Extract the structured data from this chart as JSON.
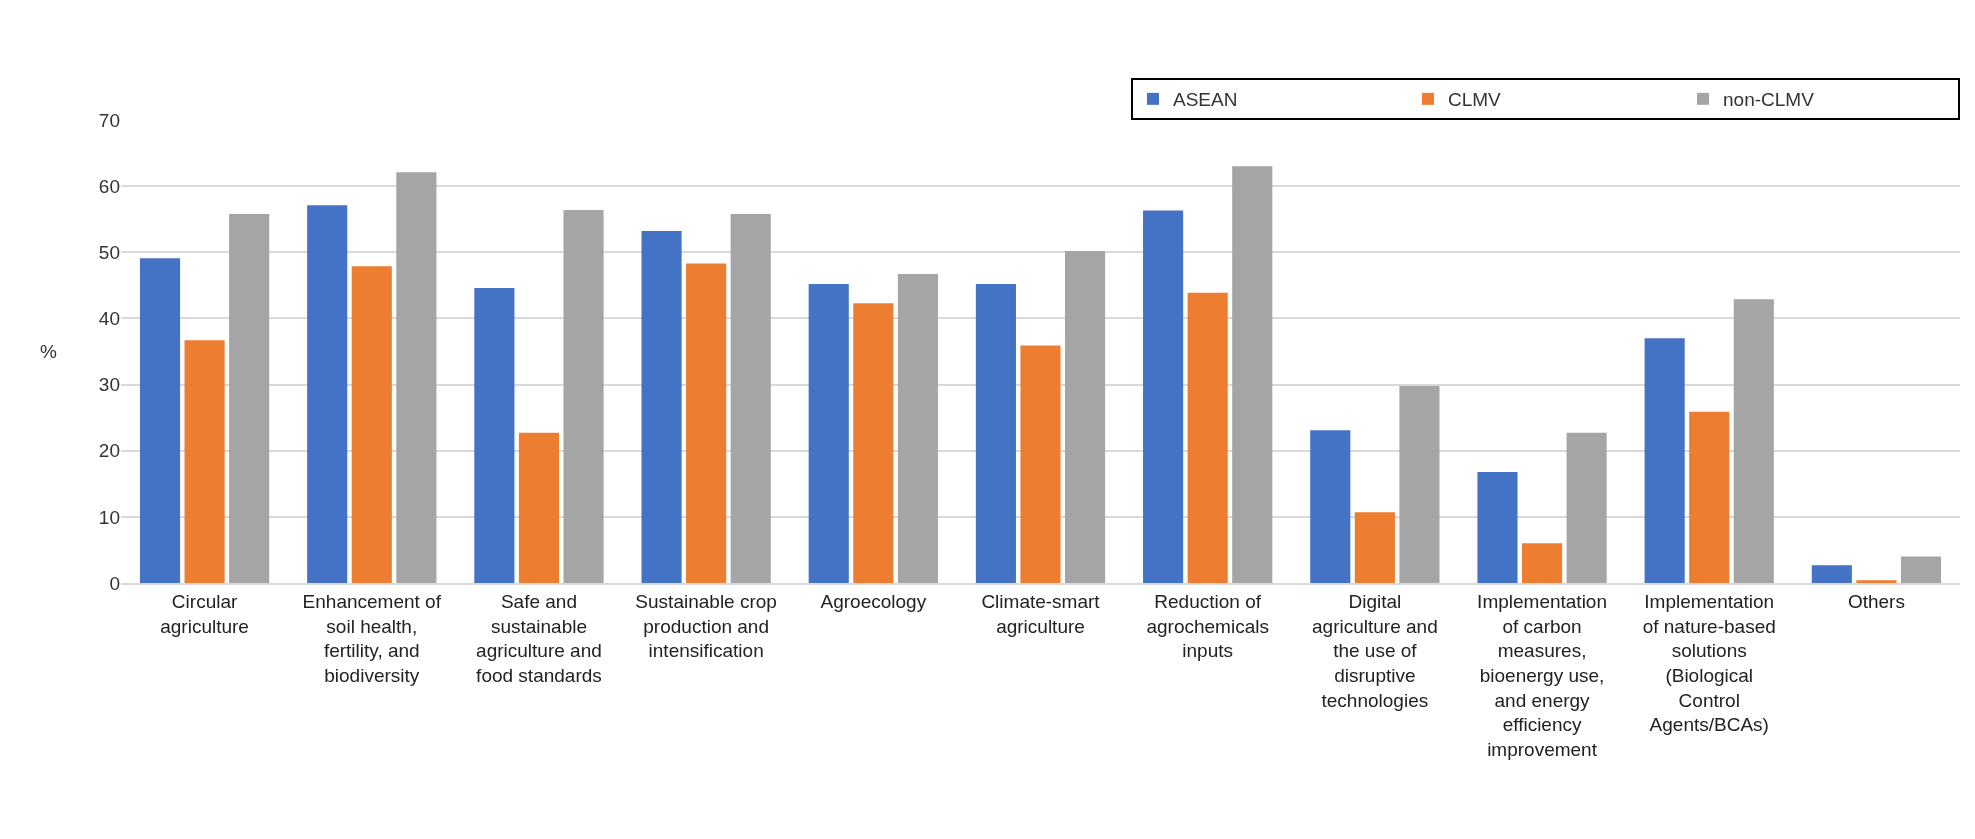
{
  "chart_data": {
    "type": "bar",
    "ylabel": "%",
    "categories": [
      "Circular agriculture",
      "Enhancement of soil health, fertility, and biodiversity",
      "Safe and sustainable agriculture and food standards",
      "Sustainable crop production and intensification",
      "Agroecology",
      "Climate-smart agriculture",
      "Reduction of agrochemicals inputs",
      "Digital agriculture and the use of disruptive technologies",
      "Implementation of carbon measures, bioenergy use, and energy efficiency improvement",
      "Implementation of nature-based solutions (Biological Control Agents/BCAs)",
      "Others"
    ],
    "series": [
      {
        "name": "ASEAN",
        "color": "#4472c4",
        "values": [
          49.1,
          57.1,
          44.6,
          53.2,
          45.2,
          45.2,
          56.3,
          23.1,
          16.8,
          37.0,
          2.7
        ]
      },
      {
        "name": "CLMV",
        "color": "#ed7d31",
        "values": [
          36.7,
          47.9,
          22.7,
          48.3,
          42.3,
          35.9,
          43.9,
          10.7,
          6.0,
          25.9,
          0.4
        ]
      },
      {
        "name": "non-CLMV",
        "color": "#a5a5a5",
        "values": [
          55.8,
          62.1,
          56.4,
          55.8,
          46.7,
          50.2,
          63.0,
          29.8,
          22.7,
          42.9,
          4.0
        ]
      }
    ],
    "ylim": [
      0,
      70
    ],
    "yticks": [
      0,
      10,
      20,
      30,
      40,
      50,
      60,
      70
    ],
    "grid": "y",
    "legend": "top right"
  }
}
